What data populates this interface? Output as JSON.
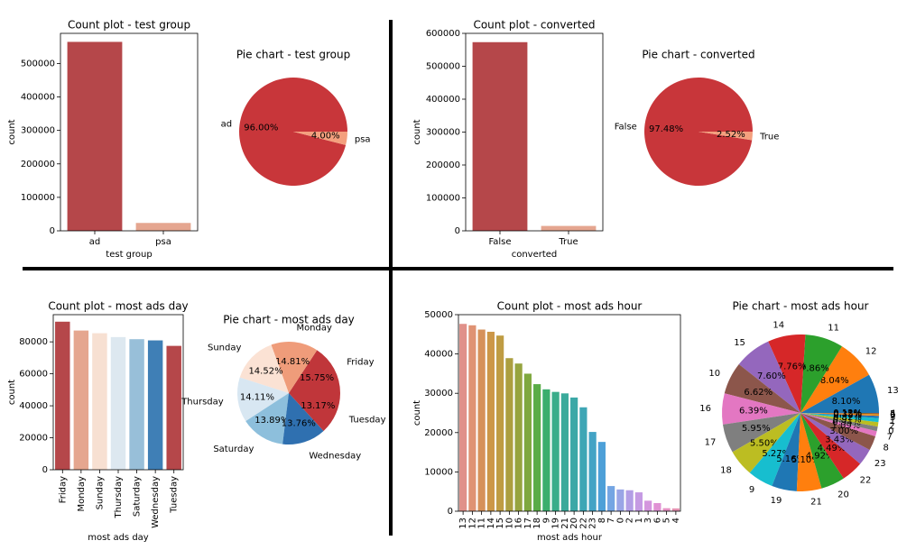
{
  "figure": {
    "colors": {
      "red": "#c0392b",
      "salmon": "#e8a088",
      "divider": "#000000"
    }
  },
  "chart_data": [
    {
      "type": "bar",
      "title": "Count plot - test group",
      "xlabel": "test group",
      "ylabel": "count",
      "categories": [
        "ad",
        "psa"
      ],
      "values": [
        564577,
        23524
      ],
      "ylim": [
        0,
        590000
      ],
      "yticks": [
        0,
        100000,
        200000,
        300000,
        400000,
        500000
      ],
      "colors": [
        "#b5474a",
        "#e5a690"
      ]
    },
    {
      "type": "pie",
      "title": "Pie chart - test group",
      "labels": [
        "ad",
        "psa"
      ],
      "values": [
        96.0,
        4.0
      ],
      "pct_labels": [
        "96.00%",
        "4.00%"
      ],
      "colors": [
        "#c8363a",
        "#f4a07e"
      ]
    },
    {
      "type": "bar",
      "title": "Count plot - converted",
      "xlabel": "converted",
      "ylabel": "count",
      "categories": [
        "False",
        "True"
      ],
      "values": [
        573258,
        14843
      ],
      "ylim": [
        0,
        600000
      ],
      "yticks": [
        0,
        100000,
        200000,
        300000,
        400000,
        500000,
        600000
      ],
      "colors": [
        "#b5474a",
        "#e5a690"
      ]
    },
    {
      "type": "pie",
      "title": "Pie chart - converted",
      "labels": [
        "False",
        "True"
      ],
      "values": [
        97.48,
        2.52
      ],
      "pct_labels": [
        "97.48%",
        "2.52%"
      ],
      "colors": [
        "#c8363a",
        "#f4a07e"
      ]
    },
    {
      "type": "bar",
      "title": "Count plot - most ads day",
      "xlabel": "most ads day",
      "ylabel": "count",
      "categories": [
        "Friday",
        "Monday",
        "Sunday",
        "Thursday",
        "Saturday",
        "Wednesday",
        "Tuesday"
      ],
      "values": [
        92608,
        87073,
        85391,
        82982,
        81660,
        80908,
        77479
      ],
      "ylim": [
        0,
        97000
      ],
      "yticks": [
        0,
        20000,
        40000,
        60000,
        80000
      ],
      "colors": [
        "#b5474a",
        "#e5a68f",
        "#f7e0d2",
        "#dde8f0",
        "#98bfd9",
        "#3f7fb6",
        "#b5474a"
      ]
    },
    {
      "type": "pie",
      "title": "Pie chart - most ads day",
      "labels": [
        "Friday",
        "Monday",
        "Sunday",
        "Thursday",
        "Saturday",
        "Wednesday",
        "Tuesday"
      ],
      "values": [
        15.75,
        14.81,
        14.52,
        14.11,
        13.89,
        13.76,
        13.17
      ],
      "pct_labels": [
        "15.75%",
        "14.81%",
        "14.52%",
        "14.11%",
        "13.89%",
        "13.76%",
        "13.17%"
      ],
      "colors": [
        "#c0363a",
        "#ef9c7a",
        "#fbe2d4",
        "#d8e7f2",
        "#8dbfdc",
        "#2f70b0",
        "#c0363a"
      ]
    },
    {
      "type": "bar",
      "title": "Count plot - most ads hour",
      "xlabel": "most ads hour",
      "ylabel": "count",
      "categories": [
        "13",
        "12",
        "11",
        "14",
        "15",
        "10",
        "16",
        "17",
        "18",
        "9",
        "19",
        "21",
        "20",
        "22",
        "23",
        "8",
        "7",
        "0",
        "2",
        "1",
        "3",
        "6",
        "5",
        "4"
      ],
      "values": [
        47655,
        47298,
        46210,
        45648,
        44683,
        38939,
        37567,
        34988,
        32323,
        31004,
        30352,
        29976,
        28923,
        26432,
        20166,
        17627,
        6405,
        5536,
        5333,
        4802,
        2679,
        2068,
        765,
        722
      ],
      "ylim": [
        0,
        50000
      ],
      "yticks": [
        0,
        10000,
        20000,
        30000,
        40000,
        50000
      ],
      "colors": [
        "#e0918a",
        "#df9273",
        "#d6915a",
        "#cc9748",
        "#bf9c43",
        "#ac9f40",
        "#96a43f",
        "#7fa83f",
        "#5aac47",
        "#3bae6d",
        "#39ad8a",
        "#3aaa9b",
        "#3ca8a7",
        "#3ea6b5",
        "#43a3c5",
        "#4da0d8",
        "#74a5e3",
        "#9aa5e6",
        "#b39ee5",
        "#c59ae3",
        "#d496de",
        "#e092d4",
        "#e592c3",
        "#e593b2"
      ]
    },
    {
      "type": "pie",
      "title": "Pie chart - most ads hour",
      "labels": [
        "13",
        "12",
        "11",
        "14",
        "15",
        "10",
        "16",
        "17",
        "18",
        "9",
        "19",
        "21",
        "20",
        "22",
        "23",
        "8",
        "7",
        "0",
        "2",
        "1",
        "3",
        "6",
        "5",
        "4"
      ],
      "values": [
        8.1,
        8.04,
        7.86,
        7.76,
        7.6,
        6.62,
        6.39,
        5.95,
        5.5,
        5.27,
        5.16,
        5.1,
        4.92,
        4.49,
        3.43,
        3.0,
        1.09,
        0.94,
        0.91,
        0.82,
        0.46,
        0.35,
        0.13,
        0.12
      ],
      "pct_labels": [
        "8.10%",
        "8.04%",
        "7.86%",
        "7.76%",
        "7.60%",
        "6.62%",
        "6.39%",
        "5.95%",
        "5.50%",
        "5.27%",
        "5.16%",
        "5.10%",
        "4.92%",
        "4.49%",
        "3.43%",
        "3.00%",
        "1.09%",
        "0.94%",
        "0.91%",
        "0.82%",
        "0.46%",
        "0.35%",
        "0.13%",
        "0.12%"
      ],
      "colors": [
        "#1f77b4",
        "#ff7f0e",
        "#2ca02c",
        "#d62728",
        "#9467bd",
        "#8c564b",
        "#e377c2",
        "#7f7f7f",
        "#bcbd22",
        "#17becf",
        "#1f77b4",
        "#ff7f0e",
        "#2ca02c",
        "#d62728",
        "#9467bd",
        "#8c564b",
        "#e377c2",
        "#7f7f7f",
        "#bcbd22",
        "#17becf",
        "#1f77b4",
        "#ff7f0e",
        "#2ca02c",
        "#d62728"
      ]
    }
  ]
}
